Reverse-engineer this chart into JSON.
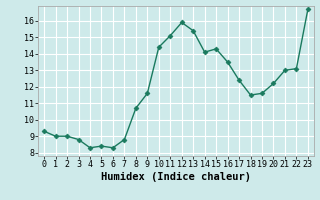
{
  "x": [
    0,
    1,
    2,
    3,
    4,
    5,
    6,
    7,
    8,
    9,
    10,
    11,
    12,
    13,
    14,
    15,
    16,
    17,
    18,
    19,
    20,
    21,
    22,
    23
  ],
  "y": [
    9.3,
    9.0,
    9.0,
    8.8,
    8.3,
    8.4,
    8.3,
    8.8,
    10.7,
    11.6,
    14.4,
    15.1,
    15.9,
    15.4,
    14.1,
    14.3,
    13.5,
    12.4,
    11.5,
    11.6,
    12.2,
    13.0,
    13.1,
    16.7
  ],
  "line_color": "#1a7a5e",
  "marker": "D",
  "markersize": 2.5,
  "linewidth": 1.0,
  "xlabel": "Humidex (Indice chaleur)",
  "xlim": [
    -0.5,
    23.5
  ],
  "ylim": [
    7.8,
    16.9
  ],
  "yticks": [
    8,
    9,
    10,
    11,
    12,
    13,
    14,
    15,
    16
  ],
  "xticks": [
    0,
    1,
    2,
    3,
    4,
    5,
    6,
    7,
    8,
    9,
    10,
    11,
    12,
    13,
    14,
    15,
    16,
    17,
    18,
    19,
    20,
    21,
    22,
    23
  ],
  "bg_color": "#ceeaea",
  "grid_color": "#ffffff",
  "spine_color": "#aaaaaa",
  "tick_fontsize": 6,
  "xlabel_fontsize": 7.5
}
